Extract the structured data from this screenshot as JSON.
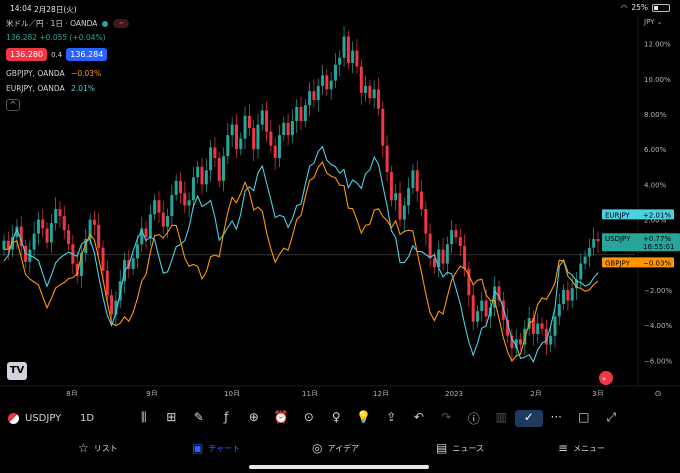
{
  "status_bar": {
    "time": "14:04",
    "date": "2月28日(火)",
    "battery": "25%"
  },
  "legend": {
    "title": "米ドル／円 · 1日 · OANDA",
    "pill": "≈",
    "price": "136.282 +0.055 (+0.04%)",
    "bid": "136.280",
    "spread": "0.4",
    "ask": "136.284",
    "compare": [
      {
        "name": "GBPJPY, OANDA",
        "change": "−0.03%",
        "color": "#ff9800"
      },
      {
        "name": "EURJPY, OANDA",
        "change": "2.01%",
        "color": "#4dd0e1"
      }
    ],
    "collapse": "^"
  },
  "toolbar": {
    "symbol": "USDJPY",
    "interval": "1D",
    "tools": [
      "candles-icon",
      "indicator-add-icon",
      "pencil-icon",
      "fx-icon",
      "plus-circle-icon",
      "alarm-icon",
      "replay-icon",
      "bulb-icon",
      "bulb2-icon",
      "share-icon",
      "undo-icon",
      "redo-icon",
      "info-icon",
      "bars-icon",
      "check-icon",
      "more-icon",
      "square-icon",
      "fullscreen-icon"
    ],
    "tool_glyphs": [
      "⫼",
      "⊞",
      "✎",
      "ƒ",
      "⊕",
      "⏰",
      "⊙",
      "♀",
      "💡",
      "⇪",
      "↶",
      "↷",
      "ⓘ",
      "▥",
      "✓",
      "···",
      "□",
      "⤢"
    ]
  },
  "tabs": [
    {
      "label": "リスト",
      "icon": "star-icon",
      "glyph": "☆"
    },
    {
      "label": "チャート",
      "icon": "chart-icon",
      "glyph": "▣"
    },
    {
      "label": "アイデア",
      "icon": "idea-icon",
      "glyph": "◎"
    },
    {
      "label": "ニュース",
      "icon": "news-icon",
      "glyph": "▤"
    },
    {
      "label": "メニュー",
      "icon": "menu-icon",
      "glyph": "≡"
    }
  ],
  "chart_data": {
    "type": "candlestick-compare",
    "y_axis_unit": "JPY",
    "y_ticks": [
      "12.00%",
      "10.00%",
      "8.00%",
      "6.00%",
      "4.00%",
      "2.00%",
      "−2.00%",
      "−4.00%",
      "−6.00%"
    ],
    "x_ticks": [
      "8月",
      "9月",
      "10月",
      "11月",
      "12月",
      "2023",
      "2月",
      "3月"
    ],
    "ylim": [
      -7,
      13
    ],
    "labels": [
      {
        "series": "EURJPY",
        "value": "+2.01%",
        "color": "#4dd0e1"
      },
      {
        "series": "USDJPY",
        "value": "+0.77%",
        "extra": "16:55:01",
        "color": "#26a69a"
      },
      {
        "series": "GBPJPY",
        "value": "−0.03%",
        "color": "#ff9800"
      }
    ],
    "usdjpy_close_pct": [
      0.8,
      0.3,
      1.0,
      1.6,
      0.5,
      -0.4,
      0.3,
      1.2,
      2.0,
      1.5,
      0.7,
      1.8,
      2.6,
      2.2,
      1.4,
      0.6,
      -0.5,
      -1.2,
      0.1,
      0.9,
      2.0,
      1.7,
      0.4,
      -0.9,
      -2.3,
      -3.4,
      -2.6,
      -1.5,
      -0.3,
      -0.8,
      -0.2,
      0.6,
      1.5,
      1.0,
      2.3,
      3.1,
      2.4,
      1.6,
      2.2,
      3.4,
      4.2,
      3.5,
      2.8,
      3.1,
      4.4,
      5.0,
      4.0,
      4.8,
      6.1,
      5.5,
      4.2,
      5.6,
      6.8,
      7.4,
      6.0,
      6.6,
      7.9,
      7.2,
      6.0,
      7.4,
      8.2,
      7.0,
      6.2,
      5.5,
      6.8,
      7.5,
      6.8,
      7.6,
      8.4,
      7.6,
      8.5,
      9.3,
      8.8,
      9.6,
      10.2,
      9.4,
      9.9,
      10.8,
      11.2,
      12.4,
      10.9,
      11.6,
      10.7,
      9.2,
      9.6,
      8.9,
      9.4,
      8.3,
      6.2,
      4.7,
      3.1,
      3.5,
      2.0,
      2.8,
      3.8,
      4.8,
      3.6,
      2.6,
      1.2,
      -0.2,
      -0.7,
      0.3,
      -0.5,
      0.6,
      1.4,
      1.0,
      0.5,
      -0.8,
      -2.3,
      -3.8,
      -3.2,
      -2.6,
      -3.5,
      -3.0,
      -1.8,
      -2.6,
      -3.7,
      -4.6,
      -5.3,
      -4.8,
      -5.1,
      -4.2,
      -3.6,
      -4.5,
      -3.9,
      -4.2,
      -5.1,
      -4.6,
      -3.5,
      -2.8,
      -2.0,
      -2.6,
      -1.9,
      -1.4,
      -0.5,
      -0.1,
      0.4,
      0.9,
      0.77
    ]
  }
}
